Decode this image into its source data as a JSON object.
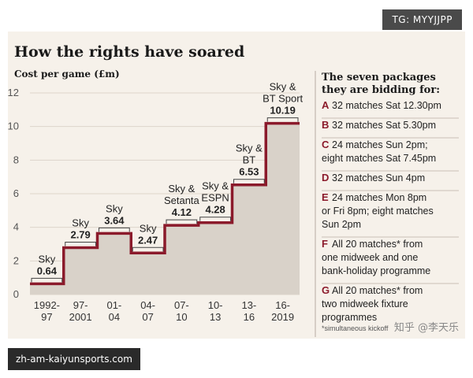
{
  "chart_data": {
    "type": "line",
    "step": true,
    "title": "How the rights have soared",
    "ylabel": "Cost per game (£m)",
    "ylim": [
      0,
      12
    ],
    "yticks": [
      0,
      2,
      4,
      6,
      8,
      10,
      12
    ],
    "grid": true,
    "categories": [
      "1992-97",
      "97-2001",
      "01-04",
      "04-07",
      "07-10",
      "10-13",
      "13-16",
      "16-2019"
    ],
    "category_labels": [
      [
        "1992-",
        "97"
      ],
      [
        "97-",
        "2001"
      ],
      [
        "01-",
        "04"
      ],
      [
        "04-",
        "07"
      ],
      [
        "07-",
        "10"
      ],
      [
        "10-",
        "13"
      ],
      [
        "13-",
        "16"
      ],
      [
        "16-",
        "2019"
      ]
    ],
    "values": [
      0.64,
      2.79,
      3.64,
      2.47,
      4.12,
      4.28,
      6.53,
      10.19
    ],
    "labels": [
      [
        "Sky"
      ],
      [
        "Sky"
      ],
      [
        "Sky"
      ],
      [
        "Sky"
      ],
      [
        "Sky &",
        "Setanta"
      ],
      [
        "Sky &",
        "ESPN"
      ],
      [
        "Sky &",
        "BT"
      ],
      [
        "Sky &",
        "BT Sport"
      ]
    ],
    "value_labels": [
      "0.64",
      "2.79",
      "3.64",
      "2.47",
      "4.12",
      "4.28",
      "6.53",
      "10.19"
    ],
    "colors": {
      "line": "#8b1a2b",
      "fill": "#d9d2c9",
      "accent": "#8b1a2b"
    }
  },
  "sidebar": {
    "title_lines": [
      "The seven packages",
      "they are bidding for:"
    ],
    "packages": [
      {
        "letter": "A",
        "lines": [
          "32 matches Sat 12.30pm"
        ]
      },
      {
        "letter": "B",
        "lines": [
          "32 matches Sat 5.30pm"
        ]
      },
      {
        "letter": "C",
        "lines": [
          "24 matches Sun 2pm;",
          "eight matches Sat 7.45pm"
        ]
      },
      {
        "letter": "D",
        "lines": [
          "32 matches Sun 4pm"
        ]
      },
      {
        "letter": "E",
        "lines": [
          "24 matches Mon 8pm",
          "or Fri 8pm; eight matches",
          "Sun 2pm"
        ]
      },
      {
        "letter": "F",
        "lines": [
          "All 20 matches* from",
          "one midweek and one",
          "bank-holiday programme"
        ]
      },
      {
        "letter": "G",
        "lines": [
          "All 20 matches* from",
          "two midweek fixture",
          "programmes"
        ]
      }
    ],
    "footnote": "*simultaneous kickoff",
    "watermark": "知乎 @李天乐"
  },
  "badges": {
    "top": "TG: MYYJJPP",
    "bottom": "zh-am-kaiyunsports.com"
  }
}
